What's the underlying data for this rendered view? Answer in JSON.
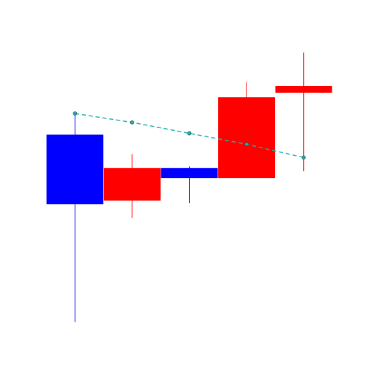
{
  "chart_data": {
    "type": "candlestick",
    "title": "",
    "xlabel": "",
    "ylabel": "",
    "grid": false,
    "legend": "none",
    "ylim": [
      0,
      100
    ],
    "candles": [
      {
        "index": 0,
        "open": 44.2,
        "high": 70.8,
        "low": 9.7,
        "close": 64.6,
        "color": "#0000ff"
      },
      {
        "index": 1,
        "open": 54.8,
        "high": 58.9,
        "low": 40.2,
        "close": 45.3,
        "color": "#ff0000"
      },
      {
        "index": 2,
        "open": 51.9,
        "high": 55.3,
        "low": 44.6,
        "close": 54.8,
        "color": "#0000ff"
      },
      {
        "index": 3,
        "open": 75.6,
        "high": 80.0,
        "low": 51.9,
        "close": 51.9,
        "color": "#ff0000"
      },
      {
        "index": 4,
        "open": 78.9,
        "high": 88.7,
        "low": 53.9,
        "close": 76.9,
        "color": "#ff0000"
      }
    ],
    "trendline": {
      "color": "#20b2aa",
      "style": "dashed",
      "points": [
        {
          "index": 0,
          "value": 70.8
        },
        {
          "index": 1,
          "value": 68.2
        },
        {
          "index": 2,
          "value": 65.0
        },
        {
          "index": 3,
          "value": 61.8
        },
        {
          "index": 4,
          "value": 57.9
        }
      ]
    }
  }
}
